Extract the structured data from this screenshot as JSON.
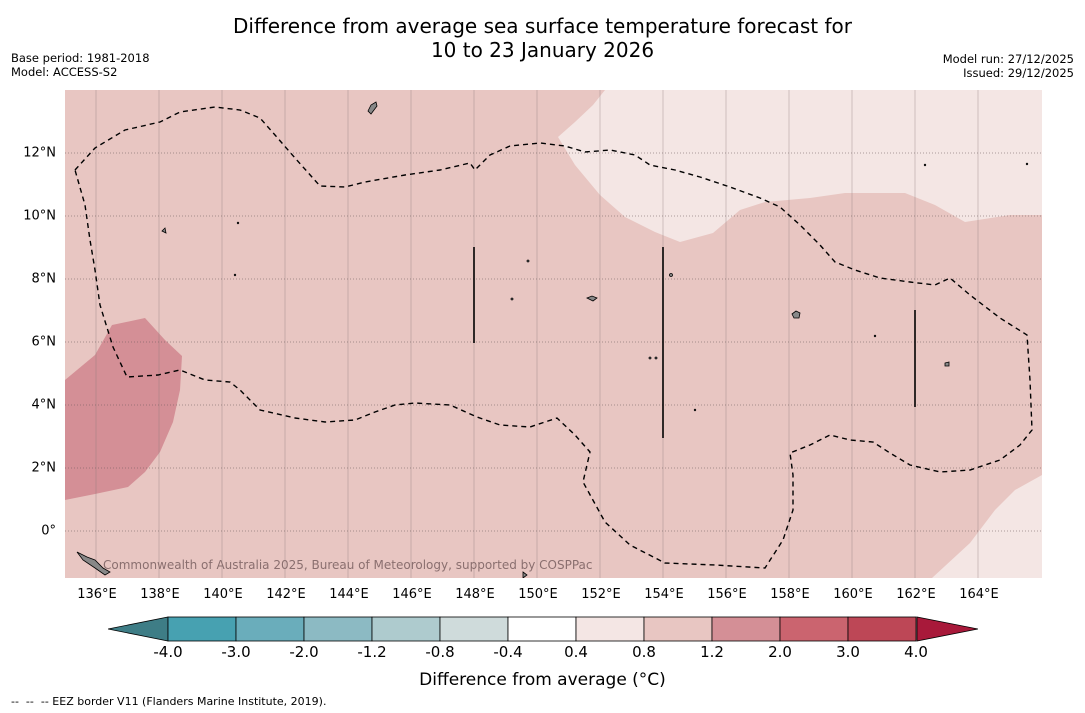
{
  "title_line1": "Difference from average sea surface temperature forecast for",
  "title_line2": "10 to 23 January 2026",
  "base_period": "Base period: 1981-2018",
  "model": "Model: ACCESS-S2",
  "model_run": "Model run: 27/12/2025",
  "issued": "Issued: 29/12/2025",
  "lon_labels": [
    "136°E",
    "138°E",
    "140°E",
    "142°E",
    "144°E",
    "146°E",
    "148°E",
    "150°E",
    "152°E",
    "154°E",
    "156°E",
    "158°E",
    "160°E",
    "162°E",
    "164°E"
  ],
  "lat_labels": [
    "12°N",
    "10°N",
    "8°N",
    "6°N",
    "4°N",
    "2°N",
    "0°"
  ],
  "credit": "Commonwealth of Australia 2025, Bureau of Meteorology, supported by COSPPac",
  "colorbar": {
    "ticks": [
      "-4.0",
      "-3.0",
      "-2.0",
      "-1.2",
      "-0.8",
      "-0.4",
      "0.4",
      "0.8",
      "1.2",
      "2.0",
      "3.0",
      "4.0"
    ],
    "colors": [
      "#47a1b1",
      "#6aadbb",
      "#8cbac3",
      "#aecbce",
      "#cfdbdb",
      "#ffffff",
      "#f4e6e4",
      "#e8c6c2",
      "#d48f96",
      "#cb646f",
      "#bd4756"
    ],
    "under_color": "#3e7d86",
    "over_color": "#a8193a",
    "label": "Difference from average (°C)"
  },
  "legend_text": "--  --  -- EEZ border V11 (Flanders Marine Institute, 2019).",
  "colors": {
    "base_field": "#e8c6c2",
    "warm_patch": "#d48f96",
    "cool_patch": "#f4e6e4",
    "eez_line": "#000000"
  }
}
